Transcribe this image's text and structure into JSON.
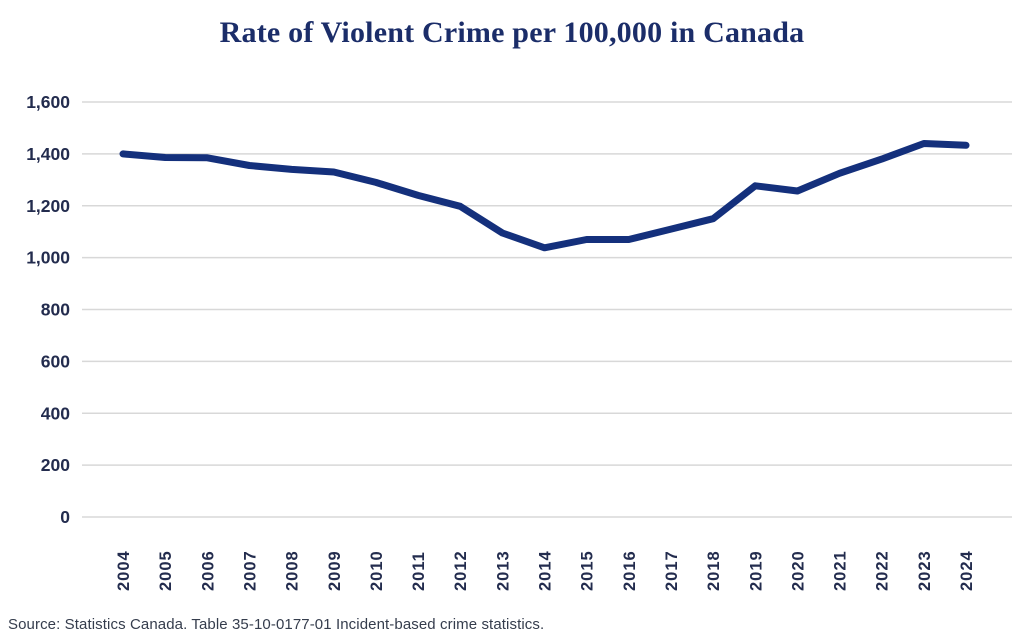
{
  "title": "Rate of Violent Crime per 100,000 in Canada",
  "source_note": "Source: Statistics Canada. Table 35-10-0177-01 Incident-based crime statistics.",
  "colors": {
    "line": "#14307c",
    "title_text": "#1b2d69",
    "axis_label_text": "#232c4e",
    "gridline": "#d8d8d8",
    "source_text": "#353d4d",
    "background": "#ffffff"
  },
  "chart_data": {
    "type": "line",
    "title": "Rate of Violent Crime per 100,000 in Canada",
    "xlabel": "",
    "ylabel": "",
    "categories": [
      "2004",
      "2005",
      "2006",
      "2007",
      "2008",
      "2009",
      "2010",
      "2011",
      "2012",
      "2013",
      "2014",
      "2015",
      "2016",
      "2017",
      "2018",
      "2019",
      "2020",
      "2021",
      "2022",
      "2023",
      "2024"
    ],
    "values": [
      1400,
      1386,
      1385,
      1355,
      1340,
      1330,
      1290,
      1240,
      1198,
      1095,
      1038,
      1070,
      1070,
      1110,
      1150,
      1277,
      1257,
      1325,
      1380,
      1440,
      1433
    ],
    "ylim": [
      0,
      1600
    ],
    "ytick_step": 200,
    "ytick_labels": [
      "0",
      "200",
      "400",
      "600",
      "800",
      "1,000",
      "1,200",
      "1,400",
      "1,600"
    ],
    "grid": true,
    "legend": "none",
    "line_width": 7
  }
}
